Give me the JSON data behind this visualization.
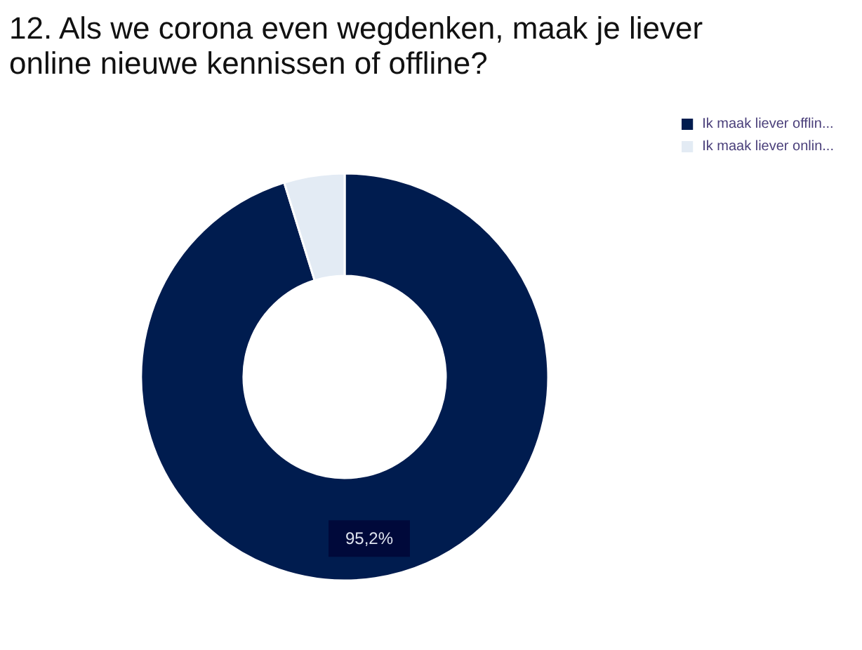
{
  "chart_data": {
    "type": "donut",
    "title": "12. Als we corona even wegdenken, maak je liever online nieuwe kennissen of offline?",
    "categories": [
      "Ik maak liever offlin...",
      "Ik maak liever onlin..."
    ],
    "values": [
      95.2,
      4.8
    ],
    "colors": [
      "#001c4f",
      "#e3ebf4"
    ],
    "value_labels": [
      "95,2%",
      null
    ],
    "legend": "top right"
  }
}
